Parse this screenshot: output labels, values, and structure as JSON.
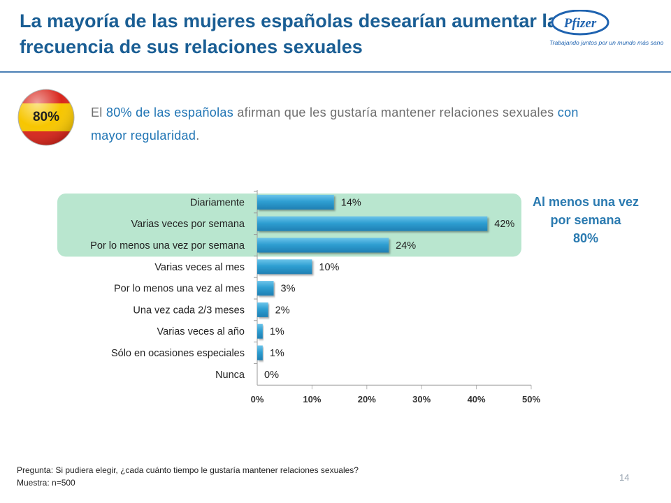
{
  "slide": {
    "title": "La mayoría de las mujeres españolas desearían aumentar la frecuencia de sus relaciones sexuales",
    "logo_brand": "Pfizer",
    "logo_tagline": "Trabajando juntos por un mundo más sano",
    "badge": "80%",
    "intro": {
      "parts": [
        {
          "text": "El ",
          "hl": false
        },
        {
          "text": "80% de las españolas",
          "hl": true
        },
        {
          "text": " afirman que les gustaría mantener relaciones sexuales ",
          "hl": false
        },
        {
          "text": "con mayor regularidad",
          "hl": true
        },
        {
          "text": ".",
          "hl": false
        }
      ]
    },
    "callout": {
      "line1": "Al menos una vez",
      "line2": "por semana",
      "value": "80%"
    },
    "footnote": {
      "question": "Pregunta: Si pudiera elegir, ¿cada cuánto tiempo le gustaría mantener relaciones sexuales?",
      "sample": "Muestra: n=500"
    },
    "page_number": "14"
  },
  "colors": {
    "title": "#1a5e94",
    "accent": "#2a7ab0",
    "bar": "#2f9fd2",
    "highlight_box": "#b9e6cf",
    "flag_red": "#d9261c",
    "flag_yellow": "#f7c600"
  },
  "chart_data": {
    "type": "bar",
    "orientation": "horizontal",
    "categories": [
      "Diariamente",
      "Varias veces por semana",
      "Por lo menos una vez por semana",
      "Varias veces al mes",
      "Por lo menos una vez al mes",
      "Una vez cada 2/3 meses",
      "Varias veces al año",
      "Sólo en ocasiones especiales",
      "Nunca"
    ],
    "values": [
      14,
      42,
      24,
      10,
      3,
      2,
      1,
      1,
      0
    ],
    "value_labels": [
      "14%",
      "42%",
      "24%",
      "10%",
      "3%",
      "2%",
      "1%",
      "1%",
      "0%"
    ],
    "xlim": [
      0,
      50
    ],
    "xticks": [
      "0%",
      "10%",
      "20%",
      "30%",
      "40%",
      "50%"
    ],
    "highlighted_categories": [
      "Diariamente",
      "Varias veces por semana",
      "Por lo menos una vez por semana"
    ],
    "grid": true
  }
}
